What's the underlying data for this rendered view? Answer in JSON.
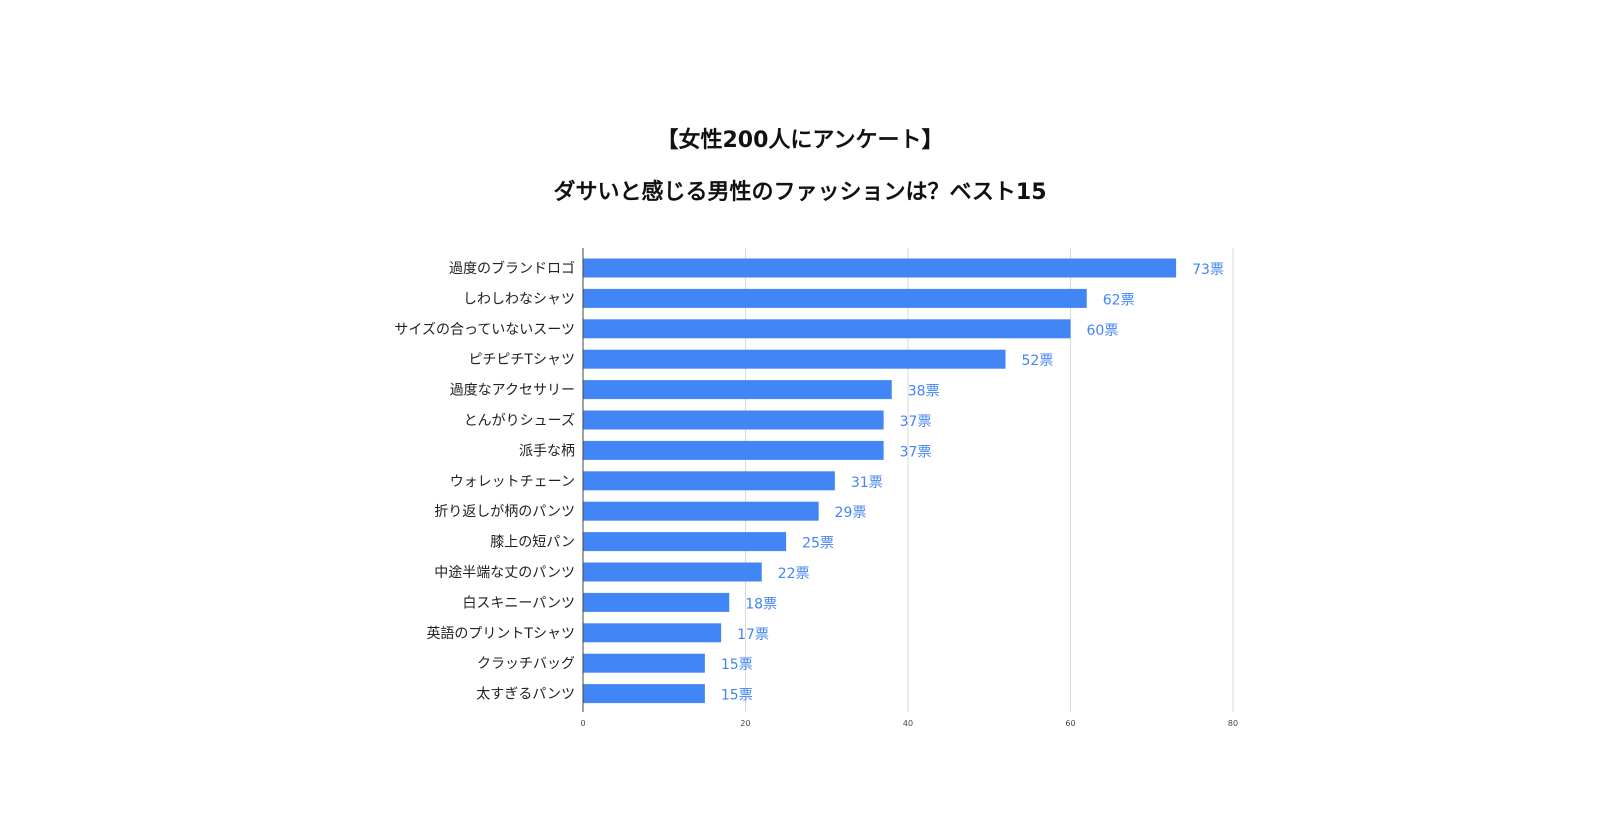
{
  "chart_data": {
    "type": "bar",
    "orientation": "horizontal",
    "title": "【女性200人にアンケート】",
    "subtitle": "ダサいと感じる男性のファッションは？ベスト15",
    "categories": [
      "過度のブランドロゴ",
      "しわしわなシャツ",
      "サイズの合っていないスーツ",
      "ピチピチTシャツ",
      "過度なアクセサリー",
      "とんがりシューズ",
      "派手な柄",
      "ウォレットチェーン",
      "折り返しが柄のパンツ",
      "膝上の短パン",
      "中途半端な丈のパンツ",
      "白スキニーパンツ",
      "英語のプリントTシャツ",
      "クラッチバッグ",
      "太すぎるパンツ"
    ],
    "values": [
      73,
      62,
      60,
      52,
      38,
      37,
      37,
      31,
      29,
      25,
      22,
      18,
      17,
      15,
      15
    ],
    "value_labels": [
      "73票",
      "62票",
      "60票",
      "52票",
      "38票",
      "37票",
      "37票",
      "31票",
      "29票",
      "25票",
      "22票",
      "18票",
      "17票",
      "15票",
      "15票"
    ],
    "xlim": [
      0,
      80
    ],
    "xticks": [
      "0",
      "20",
      "40",
      "60",
      "80"
    ],
    "grid": "vertical",
    "bar_color": "#4285f4",
    "label_color": "#4285f4"
  }
}
